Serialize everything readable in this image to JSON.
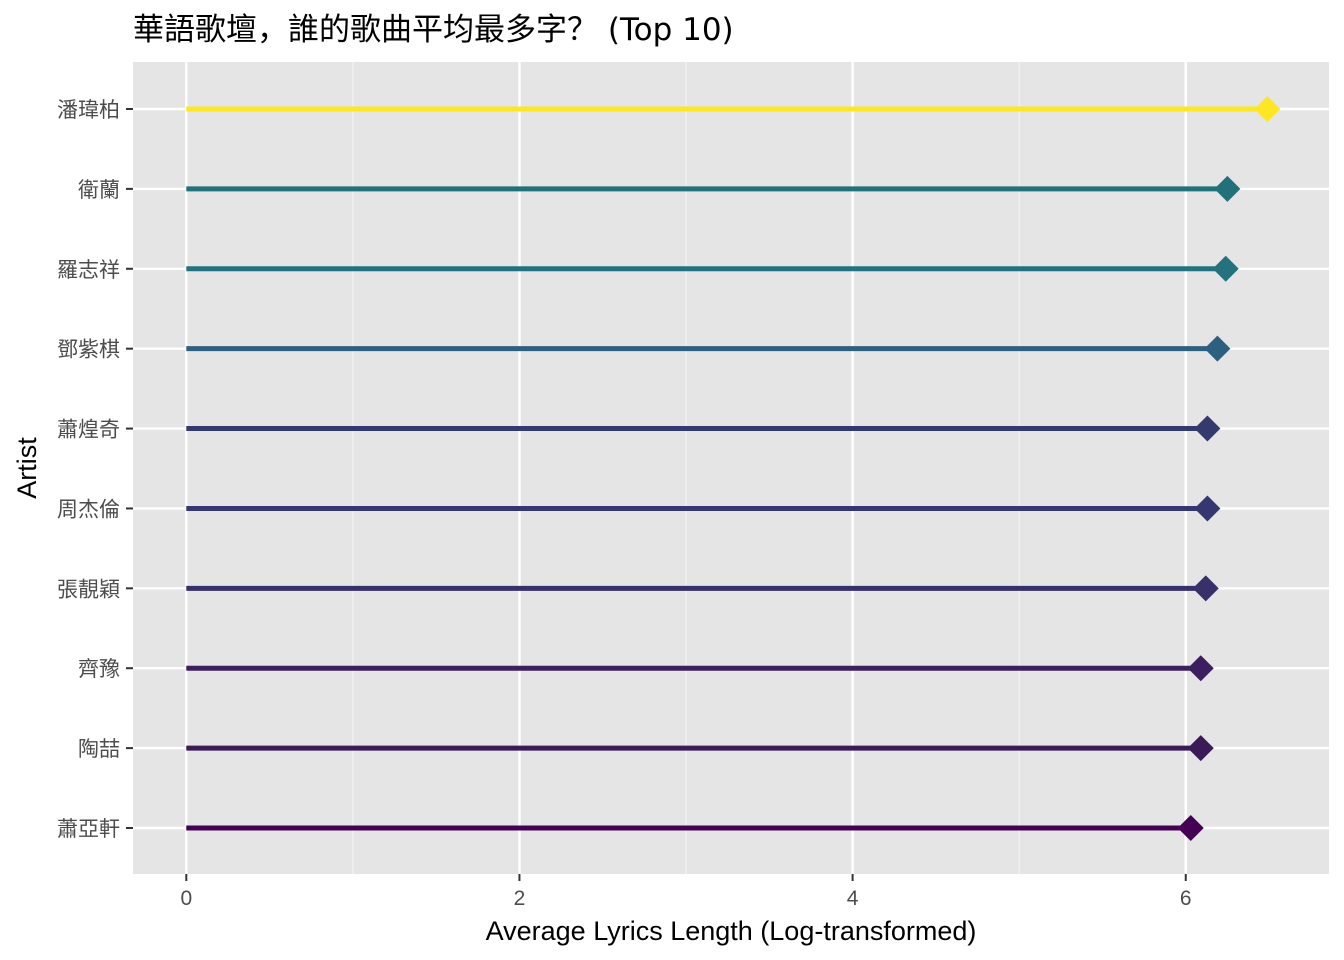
{
  "chart_data": {
    "type": "lollipop",
    "title": "華語歌壇，誰的歌曲平均最多字？ (Top 10)",
    "xlabel": "Average Lyrics Length (Log-transformed)",
    "ylabel": "Artist",
    "xlim": [
      -0.32,
      6.86
    ],
    "x_ticks": [
      0,
      2,
      4,
      6
    ],
    "x_minor_ticks": [
      1,
      3,
      5
    ],
    "grid": true,
    "legend": "none",
    "color_scale": "viridis",
    "categories": [
      "潘瑋柏",
      "衛蘭",
      "羅志祥",
      "鄧紫棋",
      "蕭煌奇",
      "周杰倫",
      "張靚穎",
      "齊豫",
      "陶喆",
      "蕭亞軒"
    ],
    "values": [
      6.49,
      6.25,
      6.24,
      6.19,
      6.13,
      6.13,
      6.12,
      6.09,
      6.09,
      6.03
    ],
    "colors": [
      "#FDE725",
      "#21707A",
      "#25727E",
      "#2D5F7F",
      "#343A6E",
      "#363770",
      "#38306B",
      "#3B1F5E",
      "#3A1B57",
      "#440154"
    ]
  }
}
